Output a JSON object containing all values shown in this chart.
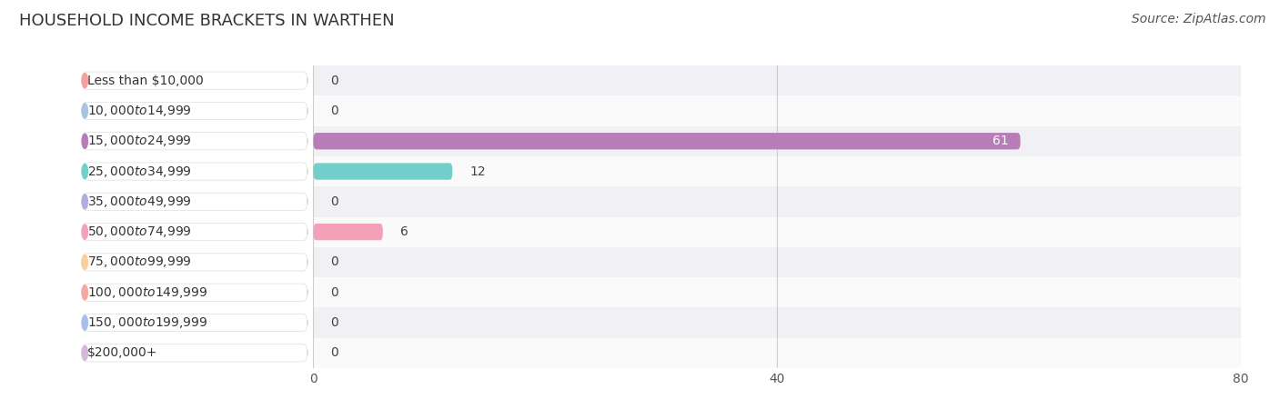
{
  "title": "HOUSEHOLD INCOME BRACKETS IN WARTHEN",
  "source": "Source: ZipAtlas.com",
  "categories": [
    "Less than $10,000",
    "$10,000 to $14,999",
    "$15,000 to $24,999",
    "$25,000 to $34,999",
    "$35,000 to $49,999",
    "$50,000 to $74,999",
    "$75,000 to $99,999",
    "$100,000 to $149,999",
    "$150,000 to $199,999",
    "$200,000+"
  ],
  "values": [
    0,
    0,
    61,
    12,
    0,
    6,
    0,
    0,
    0,
    0
  ],
  "bar_colors": [
    "#F4A0A0",
    "#A8C4E0",
    "#B87DB8",
    "#72CFCB",
    "#B0B0E0",
    "#F4A0B8",
    "#F8CFA0",
    "#F4A8A0",
    "#A8C0E8",
    "#D4B8D8"
  ],
  "bg_row_odd": "#F0F0F5",
  "bg_row_even": "#FAFAFA",
  "xlim": [
    0,
    80
  ],
  "xticks": [
    0,
    40,
    80
  ],
  "bar_height": 0.55,
  "value_label_color_inside": "#FFFFFF",
  "value_label_color_outside": "#444444",
  "title_fontsize": 13,
  "tick_fontsize": 10,
  "label_fontsize": 10,
  "source_fontsize": 10
}
